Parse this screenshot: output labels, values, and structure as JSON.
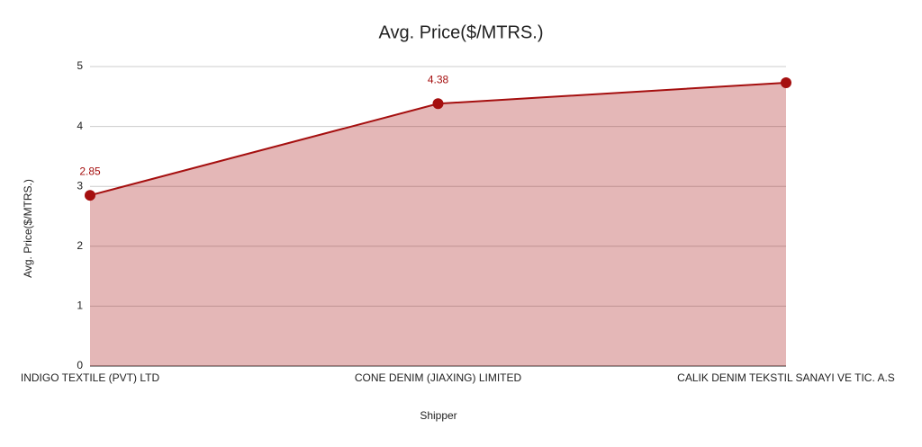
{
  "chart_data": {
    "type": "area",
    "title": "Avg. Price($/MTRS.)",
    "x_label": "Shipper",
    "y_label": "Avg. Price($/MTRS.)",
    "categories": [
      "INDIGO TEXTILE (PVT) LTD",
      "CONE DENIM (JIAXING) LIMITED",
      "CALIK DENIM TEKSTIL SANAYI VE TIC. A.S"
    ],
    "values": [
      2.85,
      4.38,
      4.73
    ],
    "data_labels": [
      true,
      true,
      false
    ],
    "color": "#a50f0f",
    "ylim": [
      0,
      5
    ],
    "yticks": [
      0,
      1,
      2,
      3,
      4,
      5
    ],
    "grid": true
  }
}
